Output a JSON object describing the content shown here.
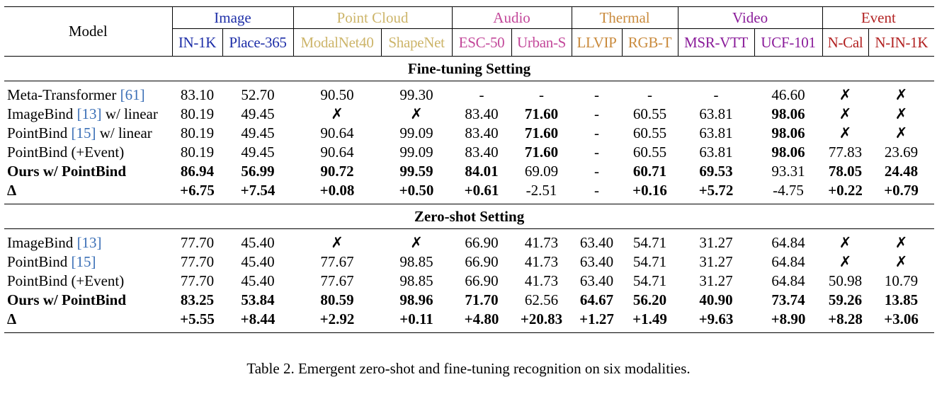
{
  "header": {
    "model_label": "Model",
    "groups": [
      {
        "label": "Image",
        "color": "#1e2fa8",
        "span": 2
      },
      {
        "label": "Point Cloud",
        "color": "#cdb56a",
        "span": 2
      },
      {
        "label": "Audio",
        "color": "#c3489a",
        "span": 2
      },
      {
        "label": "Thermal",
        "color": "#c98a3c",
        "span": 2
      },
      {
        "label": "Video",
        "color": "#8a1c9a",
        "span": 2
      },
      {
        "label": "Event",
        "color": "#b22222",
        "span": 2
      }
    ],
    "subcolumns": [
      {
        "label": "IN-1K",
        "color": "#1e2fa8"
      },
      {
        "label": "Place-365",
        "color": "#1e2fa8"
      },
      {
        "label": "ModalNet40",
        "color": "#cdb56a"
      },
      {
        "label": "ShapeNet",
        "color": "#cdb56a"
      },
      {
        "label": "ESC-50",
        "color": "#c3489a"
      },
      {
        "label": "Urban-S",
        "color": "#c3489a"
      },
      {
        "label": "LLVIP",
        "color": "#c98a3c"
      },
      {
        "label": "RGB-T",
        "color": "#c98a3c"
      },
      {
        "label": "MSR-VTT",
        "color": "#8a1c9a"
      },
      {
        "label": "UCF-101",
        "color": "#8a1c9a"
      },
      {
        "label": "N-Cal",
        "color": "#b22222"
      },
      {
        "label": "N-IN-1K",
        "color": "#b22222"
      }
    ]
  },
  "sections": [
    {
      "title": "Fine-tuning Setting",
      "rows": [
        {
          "model": "Meta-Transformer ",
          "ref": "[61]",
          "model_suffix": "",
          "bold_model": false,
          "cells": [
            "83.10",
            "52.70",
            "90.50",
            "99.30",
            "-",
            "-",
            "-",
            "-",
            "-",
            "46.60",
            "✗",
            "✗"
          ],
          "bold": [
            false,
            false,
            false,
            false,
            false,
            false,
            false,
            false,
            false,
            false,
            false,
            false
          ]
        },
        {
          "model": "ImageBind ",
          "ref": "[13]",
          "model_suffix": " w/ linear",
          "bold_model": false,
          "cells": [
            "80.19",
            "49.45",
            "✗",
            "✗",
            "83.40",
            "71.60",
            "-",
            "60.55",
            "63.81",
            "98.06",
            "✗",
            "✗"
          ],
          "bold": [
            false,
            false,
            false,
            false,
            false,
            true,
            false,
            false,
            false,
            true,
            false,
            false
          ]
        },
        {
          "model": "PointBind ",
          "ref": "[15]",
          "model_suffix": " w/ linear",
          "bold_model": false,
          "cells": [
            "80.19",
            "49.45",
            "90.64",
            "99.09",
            "83.40",
            "71.60",
            "-",
            "60.55",
            "63.81",
            "98.06",
            "✗",
            "✗"
          ],
          "bold": [
            false,
            false,
            false,
            false,
            false,
            true,
            false,
            false,
            false,
            true,
            false,
            false
          ]
        },
        {
          "model": "PointBind (+Event)",
          "ref": "",
          "model_suffix": "",
          "bold_model": false,
          "cells": [
            "80.19",
            "49.45",
            "90.64",
            "99.09",
            "83.40",
            "71.60",
            "-",
            "60.55",
            "63.81",
            "98.06",
            "77.83",
            "23.69"
          ],
          "bold": [
            false,
            false,
            false,
            false,
            false,
            true,
            false,
            false,
            false,
            true,
            false,
            false
          ]
        },
        {
          "model": "Ours w/ PointBind",
          "ref": "",
          "model_suffix": "",
          "bold_model": true,
          "cells": [
            "86.94",
            "56.99",
            "90.72",
            "99.59",
            "84.01",
            "69.09",
            "-",
            "60.71",
            "69.53",
            "93.31",
            "78.05",
            "24.48"
          ],
          "bold": [
            true,
            true,
            true,
            true,
            true,
            false,
            false,
            true,
            true,
            false,
            true,
            true
          ]
        },
        {
          "model": "Δ",
          "ref": "",
          "model_suffix": "",
          "bold_model": true,
          "cells": [
            "+6.75",
            "+7.54",
            "+0.08",
            "+0.50",
            "+0.61",
            "-2.51",
            "-",
            "+0.16",
            "+5.72",
            "-4.75",
            "+0.22",
            "+0.79"
          ],
          "bold": [
            true,
            true,
            true,
            true,
            true,
            false,
            false,
            true,
            true,
            false,
            true,
            true
          ]
        }
      ]
    },
    {
      "title": "Zero-shot Setting",
      "rows": [
        {
          "model": "ImageBind ",
          "ref": "[13]",
          "model_suffix": "",
          "bold_model": false,
          "cells": [
            "77.70",
            "45.40",
            "✗",
            "✗",
            "66.90",
            "41.73",
            "63.40",
            "54.71",
            "31.27",
            "64.84",
            "✗",
            "✗"
          ],
          "bold": [
            false,
            false,
            false,
            false,
            false,
            false,
            false,
            false,
            false,
            false,
            false,
            false
          ]
        },
        {
          "model": "PointBind ",
          "ref": "[15]",
          "model_suffix": "",
          "bold_model": false,
          "cells": [
            "77.70",
            "45.40",
            "77.67",
            "98.85",
            "66.90",
            "41.73",
            "63.40",
            "54.71",
            "31.27",
            "64.84",
            "✗",
            "✗"
          ],
          "bold": [
            false,
            false,
            false,
            false,
            false,
            false,
            false,
            false,
            false,
            false,
            false,
            false
          ]
        },
        {
          "model": "PointBind (+Event)",
          "ref": "",
          "model_suffix": "",
          "bold_model": false,
          "cells": [
            "77.70",
            "45.40",
            "77.67",
            "98.85",
            "66.90",
            "41.73",
            "63.40",
            "54.71",
            "31.27",
            "64.84",
            "50.98",
            "10.79"
          ],
          "bold": [
            false,
            false,
            false,
            false,
            false,
            false,
            false,
            false,
            false,
            false,
            false,
            false
          ]
        },
        {
          "model": "Ours w/ PointBind",
          "ref": "",
          "model_suffix": "",
          "bold_model": true,
          "cells": [
            "83.25",
            "53.84",
            "80.59",
            "98.96",
            "71.70",
            "62.56",
            "64.67",
            "56.20",
            "40.90",
            "73.74",
            "59.26",
            "13.85"
          ],
          "bold": [
            true,
            true,
            true,
            true,
            true,
            false,
            true,
            true,
            true,
            true,
            true,
            true
          ]
        },
        {
          "model": "Δ",
          "ref": "",
          "model_suffix": "",
          "bold_model": true,
          "cells": [
            "+5.55",
            "+8.44",
            "+2.92",
            "+0.11",
            "+4.80",
            "+20.83",
            "+1.27",
            "+1.49",
            "+9.63",
            "+8.90",
            "+8.28",
            "+3.06"
          ],
          "bold": [
            true,
            true,
            true,
            true,
            true,
            true,
            true,
            true,
            true,
            true,
            true,
            true
          ]
        }
      ]
    }
  ],
  "caption": "Table 2. Emergent zero-shot and fine-tuning recognition on six modalities."
}
